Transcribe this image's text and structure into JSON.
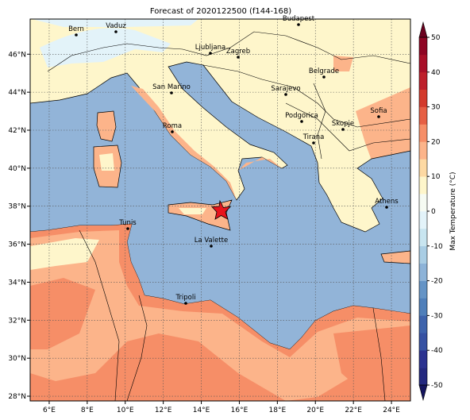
{
  "chart_data": {
    "type": "map",
    "title": "Forecast of 2020122500 (f144-168)",
    "xlim": [
      5,
      25
    ],
    "ylim": [
      27.75,
      47.85
    ],
    "xticks": [
      {
        "value": 6,
        "label": "6°E"
      },
      {
        "value": 8,
        "label": "8°E"
      },
      {
        "value": 10,
        "label": "10°E"
      },
      {
        "value": 12,
        "label": "12°E"
      },
      {
        "value": 14,
        "label": "14°E"
      },
      {
        "value": 16,
        "label": "16°E"
      },
      {
        "value": 18,
        "label": "18°E"
      },
      {
        "value": 20,
        "label": "20°E"
      },
      {
        "value": 22,
        "label": "22°E"
      },
      {
        "value": 24,
        "label": "24°E"
      }
    ],
    "yticks": [
      {
        "value": 28,
        "label": "28°N"
      },
      {
        "value": 30,
        "label": "30°N"
      },
      {
        "value": 32,
        "label": "32°N"
      },
      {
        "value": 34,
        "label": "34°N"
      },
      {
        "value": 36,
        "label": "36°N"
      },
      {
        "value": 38,
        "label": "38°N"
      },
      {
        "value": 40,
        "label": "40°N"
      },
      {
        "value": 42,
        "label": "42°N"
      },
      {
        "value": 44,
        "label": "44°N"
      },
      {
        "value": 46,
        "label": "46°N"
      }
    ],
    "grid": true,
    "cities": [
      "Bern",
      "Vaduz",
      "Budapest",
      "Ljubljana",
      "Zagreb",
      "Belgrade",
      "San Marino",
      "Sarajevo",
      "Sofia",
      "Podgorica",
      "Skopje",
      "Roma",
      "Tirana",
      "Athens",
      "Tunis",
      "La Valette",
      "Tripoli"
    ],
    "colorbar": {
      "label": "Max Temperature (°C)",
      "lim": [
        -50,
        50
      ],
      "ticks": [
        -50,
        -40,
        -30,
        -20,
        -10,
        0,
        10,
        20,
        30,
        40,
        50
      ],
      "colors": [
        "#23287f",
        "#2b3290",
        "#3651a2",
        "#3e63ac",
        "#4f7fba",
        "#6594c6",
        "#8db3d8",
        "#a9cde4",
        "#c8e5f0",
        "#e3f3f9",
        "#f6fbf3",
        "#fef6cb",
        "#fdd9a3",
        "#fcb48a",
        "#f68e67",
        "#e65f44",
        "#d33a2c",
        "#bd1f2b",
        "#a80f28",
        "#8e0523"
      ],
      "under_color": "#14145e",
      "over_color": "#6b001e"
    }
  }
}
